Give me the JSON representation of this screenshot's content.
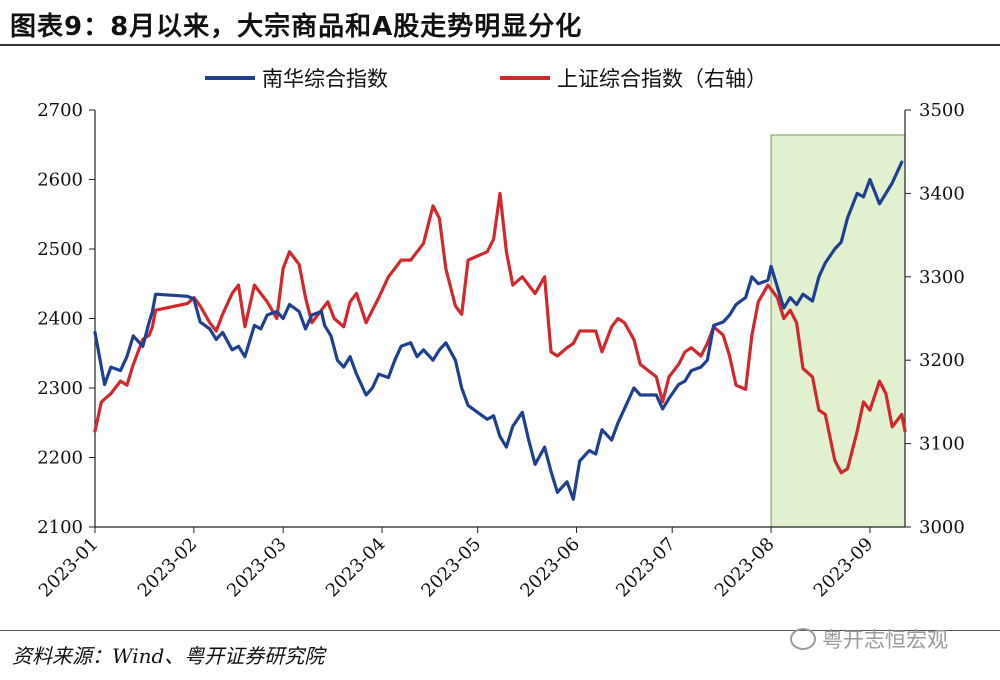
{
  "figure_title": "图表9：8月以来，大宗商品和A股走势明显分化",
  "source_text": "资料来源：Wind、粤开证券研究院",
  "watermark_text": "粤开志恒宏观",
  "colors": {
    "nanhua": "#1f3f8f",
    "shanghai": "#d0282c",
    "highlight": "#e1f1cf"
  },
  "chart_data": {
    "type": "line",
    "title": "",
    "x_axis": {
      "start": "2023-01-01",
      "end": "2023-09-12",
      "tick_labels": [
        "2023-01",
        "2023-02",
        "2023-03",
        "2023-04",
        "2023-05",
        "2023-06",
        "2023-07",
        "2023-08",
        "2023-09"
      ]
    },
    "y_left": {
      "range": [
        2100,
        2700
      ],
      "ticks": [
        2100,
        2200,
        2300,
        2400,
        2500,
        2600,
        2700
      ]
    },
    "y_right": {
      "range": [
        3000,
        3500
      ],
      "ticks": [
        3000,
        3100,
        3200,
        3300,
        3400,
        3500
      ]
    },
    "grid": false,
    "legend_position": "top",
    "highlight_region": {
      "from": "2023-08-01",
      "to": "2023-09-12"
    },
    "series": [
      {
        "name": "南华综合指数",
        "axis": "left",
        "color": "#1f3f8f",
        "points": [
          [
            "2023-01-01",
            2380
          ],
          [
            "2023-01-04",
            2305
          ],
          [
            "2023-01-06",
            2330
          ],
          [
            "2023-01-09",
            2325
          ],
          [
            "2023-01-11",
            2345
          ],
          [
            "2023-01-13",
            2375
          ],
          [
            "2023-01-16",
            2360
          ],
          [
            "2023-01-18",
            2395
          ],
          [
            "2023-01-19",
            2410
          ],
          [
            "2023-01-20",
            2435
          ],
          [
            "2023-01-30",
            2432
          ],
          [
            "2023-02-01",
            2428
          ],
          [
            "2023-02-03",
            2395
          ],
          [
            "2023-02-06",
            2385
          ],
          [
            "2023-02-08",
            2370
          ],
          [
            "2023-02-10",
            2380
          ],
          [
            "2023-02-13",
            2355
          ],
          [
            "2023-02-15",
            2360
          ],
          [
            "2023-02-17",
            2345
          ],
          [
            "2023-02-20",
            2390
          ],
          [
            "2023-02-22",
            2385
          ],
          [
            "2023-02-24",
            2405
          ],
          [
            "2023-02-27",
            2410
          ],
          [
            "2023-03-01",
            2400
          ],
          [
            "2023-03-03",
            2420
          ],
          [
            "2023-03-06",
            2410
          ],
          [
            "2023-03-08",
            2385
          ],
          [
            "2023-03-10",
            2405
          ],
          [
            "2023-03-13",
            2410
          ],
          [
            "2023-03-14",
            2390
          ],
          [
            "2023-03-16",
            2375
          ],
          [
            "2023-03-18",
            2340
          ],
          [
            "2023-03-20",
            2330
          ],
          [
            "2023-03-22",
            2345
          ],
          [
            "2023-03-24",
            2320
          ],
          [
            "2023-03-27",
            2290
          ],
          [
            "2023-03-29",
            2300
          ],
          [
            "2023-03-31",
            2320
          ],
          [
            "2023-04-03",
            2315
          ],
          [
            "2023-04-05",
            2340
          ],
          [
            "2023-04-07",
            2360
          ],
          [
            "2023-04-10",
            2365
          ],
          [
            "2023-04-12",
            2345
          ],
          [
            "2023-04-14",
            2355
          ],
          [
            "2023-04-17",
            2340
          ],
          [
            "2023-04-19",
            2355
          ],
          [
            "2023-04-21",
            2365
          ],
          [
            "2023-04-24",
            2340
          ],
          [
            "2023-04-26",
            2300
          ],
          [
            "2023-04-28",
            2275
          ],
          [
            "2023-05-04",
            2255
          ],
          [
            "2023-05-06",
            2260
          ],
          [
            "2023-05-08",
            2230
          ],
          [
            "2023-05-10",
            2215
          ],
          [
            "2023-05-12",
            2245
          ],
          [
            "2023-05-15",
            2265
          ],
          [
            "2023-05-17",
            2225
          ],
          [
            "2023-05-19",
            2190
          ],
          [
            "2023-05-22",
            2215
          ],
          [
            "2023-05-24",
            2180
          ],
          [
            "2023-05-26",
            2150
          ],
          [
            "2023-05-29",
            2165
          ],
          [
            "2023-05-31",
            2140
          ],
          [
            "2023-06-02",
            2195
          ],
          [
            "2023-06-05",
            2210
          ],
          [
            "2023-06-07",
            2205
          ],
          [
            "2023-06-09",
            2240
          ],
          [
            "2023-06-12",
            2225
          ],
          [
            "2023-06-14",
            2250
          ],
          [
            "2023-06-16",
            2270
          ],
          [
            "2023-06-19",
            2300
          ],
          [
            "2023-06-21",
            2290
          ],
          [
            "2023-06-26",
            2290
          ],
          [
            "2023-06-28",
            2270
          ],
          [
            "2023-06-30",
            2285
          ],
          [
            "2023-07-03",
            2305
          ],
          [
            "2023-07-05",
            2310
          ],
          [
            "2023-07-07",
            2325
          ],
          [
            "2023-07-10",
            2330
          ],
          [
            "2023-07-12",
            2340
          ],
          [
            "2023-07-14",
            2390
          ],
          [
            "2023-07-17",
            2395
          ],
          [
            "2023-07-19",
            2405
          ],
          [
            "2023-07-21",
            2420
          ],
          [
            "2023-07-24",
            2430
          ],
          [
            "2023-07-26",
            2460
          ],
          [
            "2023-07-28",
            2450
          ],
          [
            "2023-07-31",
            2455
          ],
          [
            "2023-08-01",
            2475
          ],
          [
            "2023-08-03",
            2445
          ],
          [
            "2023-08-05",
            2415
          ],
          [
            "2023-08-07",
            2430
          ],
          [
            "2023-08-09",
            2420
          ],
          [
            "2023-08-11",
            2435
          ],
          [
            "2023-08-14",
            2425
          ],
          [
            "2023-08-16",
            2460
          ],
          [
            "2023-08-18",
            2480
          ],
          [
            "2023-08-21",
            2500
          ],
          [
            "2023-08-23",
            2510
          ],
          [
            "2023-08-25",
            2545
          ],
          [
            "2023-08-28",
            2580
          ],
          [
            "2023-08-30",
            2575
          ],
          [
            "2023-09-01",
            2600
          ],
          [
            "2023-09-04",
            2565
          ],
          [
            "2023-09-06",
            2580
          ],
          [
            "2023-09-08",
            2595
          ],
          [
            "2023-09-11",
            2625
          ]
        ]
      },
      {
        "name": "上证综合指数（右轴）",
        "axis": "right",
        "color": "#d0282c",
        "points": [
          [
            "2023-01-01",
            3115
          ],
          [
            "2023-01-03",
            3150
          ],
          [
            "2023-01-06",
            3160
          ],
          [
            "2023-01-09",
            3175
          ],
          [
            "2023-01-11",
            3170
          ],
          [
            "2023-01-13",
            3195
          ],
          [
            "2023-01-16",
            3225
          ],
          [
            "2023-01-18",
            3230
          ],
          [
            "2023-01-19",
            3240
          ],
          [
            "2023-01-20",
            3260
          ],
          [
            "2023-01-30",
            3268
          ],
          [
            "2023-02-01",
            3275
          ],
          [
            "2023-02-03",
            3265
          ],
          [
            "2023-02-06",
            3245
          ],
          [
            "2023-02-08",
            3235
          ],
          [
            "2023-02-10",
            3255
          ],
          [
            "2023-02-13",
            3280
          ],
          [
            "2023-02-15",
            3290
          ],
          [
            "2023-02-17",
            3240
          ],
          [
            "2023-02-20",
            3290
          ],
          [
            "2023-02-22",
            3280
          ],
          [
            "2023-02-24",
            3270
          ],
          [
            "2023-02-27",
            3250
          ],
          [
            "2023-03-01",
            3310
          ],
          [
            "2023-03-03",
            3330
          ],
          [
            "2023-03-06",
            3315
          ],
          [
            "2023-03-08",
            3275
          ],
          [
            "2023-03-10",
            3245
          ],
          [
            "2023-03-13",
            3260
          ],
          [
            "2023-03-15",
            3270
          ],
          [
            "2023-03-17",
            3250
          ],
          [
            "2023-03-20",
            3240
          ],
          [
            "2023-03-22",
            3270
          ],
          [
            "2023-03-24",
            3280
          ],
          [
            "2023-03-27",
            3245
          ],
          [
            "2023-03-29",
            3260
          ],
          [
            "2023-03-31",
            3275
          ],
          [
            "2023-04-03",
            3300
          ],
          [
            "2023-04-05",
            3310
          ],
          [
            "2023-04-07",
            3320
          ],
          [
            "2023-04-10",
            3320
          ],
          [
            "2023-04-12",
            3330
          ],
          [
            "2023-04-14",
            3340
          ],
          [
            "2023-04-17",
            3385
          ],
          [
            "2023-04-19",
            3370
          ],
          [
            "2023-04-21",
            3310
          ],
          [
            "2023-04-24",
            3265
          ],
          [
            "2023-04-26",
            3255
          ],
          [
            "2023-04-28",
            3320
          ],
          [
            "2023-05-04",
            3330
          ],
          [
            "2023-05-06",
            3345
          ],
          [
            "2023-05-08",
            3400
          ],
          [
            "2023-05-10",
            3330
          ],
          [
            "2023-05-12",
            3290
          ],
          [
            "2023-05-15",
            3300
          ],
          [
            "2023-05-17",
            3290
          ],
          [
            "2023-05-19",
            3280
          ],
          [
            "2023-05-22",
            3300
          ],
          [
            "2023-05-24",
            3210
          ],
          [
            "2023-05-26",
            3205
          ],
          [
            "2023-05-29",
            3215
          ],
          [
            "2023-05-31",
            3220
          ],
          [
            "2023-06-02",
            3235
          ],
          [
            "2023-06-05",
            3235
          ],
          [
            "2023-06-07",
            3235
          ],
          [
            "2023-06-09",
            3210
          ],
          [
            "2023-06-12",
            3240
          ],
          [
            "2023-06-14",
            3250
          ],
          [
            "2023-06-16",
            3245
          ],
          [
            "2023-06-19",
            3225
          ],
          [
            "2023-06-21",
            3195
          ],
          [
            "2023-06-26",
            3180
          ],
          [
            "2023-06-28",
            3150
          ],
          [
            "2023-06-30",
            3180
          ],
          [
            "2023-07-03",
            3195
          ],
          [
            "2023-07-05",
            3210
          ],
          [
            "2023-07-07",
            3215
          ],
          [
            "2023-07-10",
            3205
          ],
          [
            "2023-07-12",
            3220
          ],
          [
            "2023-07-14",
            3240
          ],
          [
            "2023-07-17",
            3230
          ],
          [
            "2023-07-19",
            3205
          ],
          [
            "2023-07-21",
            3170
          ],
          [
            "2023-07-24",
            3165
          ],
          [
            "2023-07-26",
            3230
          ],
          [
            "2023-07-28",
            3270
          ],
          [
            "2023-07-31",
            3290
          ],
          [
            "2023-08-01",
            3285
          ],
          [
            "2023-08-03",
            3275
          ],
          [
            "2023-08-05",
            3250
          ],
          [
            "2023-08-07",
            3260
          ],
          [
            "2023-08-09",
            3245
          ],
          [
            "2023-08-11",
            3190
          ],
          [
            "2023-08-14",
            3180
          ],
          [
            "2023-08-16",
            3140
          ],
          [
            "2023-08-18",
            3135
          ],
          [
            "2023-08-21",
            3080
          ],
          [
            "2023-08-23",
            3065
          ],
          [
            "2023-08-25",
            3070
          ],
          [
            "2023-08-28",
            3115
          ],
          [
            "2023-08-30",
            3150
          ],
          [
            "2023-09-01",
            3140
          ],
          [
            "2023-09-04",
            3175
          ],
          [
            "2023-09-06",
            3160
          ],
          [
            "2023-09-08",
            3120
          ],
          [
            "2023-09-11",
            3135
          ],
          [
            "2023-09-12",
            3115
          ]
        ]
      }
    ]
  }
}
